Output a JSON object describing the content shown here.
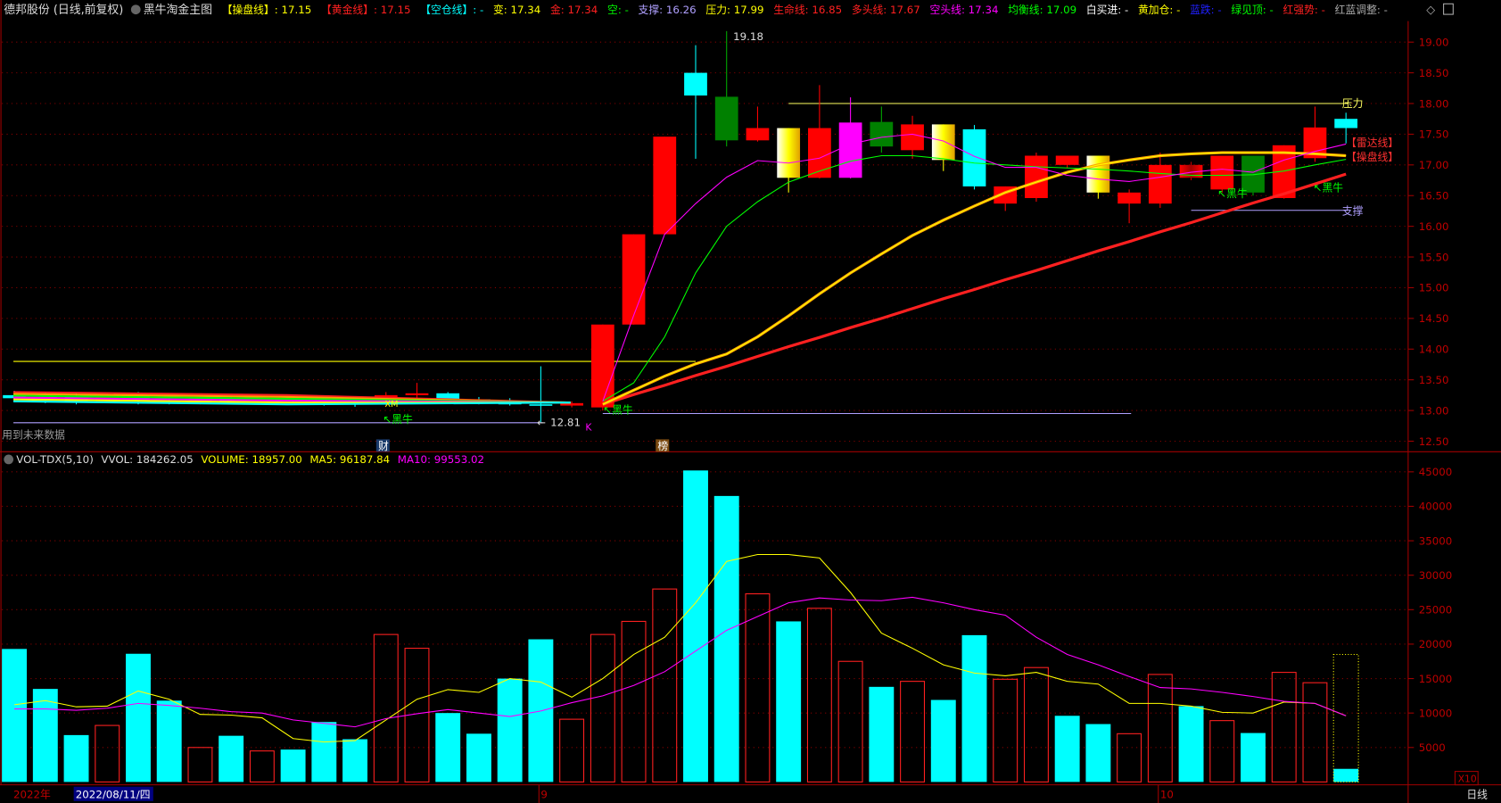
{
  "header": {
    "title": "德邦股份 (日线,前复权)",
    "indicator_name": "黑牛淘金主图",
    "items": [
      {
        "text": "【操盘线】: 17.15",
        "color": "#ffff00"
      },
      {
        "text": "【黄金线】: 17.15",
        "color": "#ff2020"
      },
      {
        "text": "【空仓线】: -",
        "color": "#00ffff"
      },
      {
        "text": "变: 17.34",
        "color": "#ffff00"
      },
      {
        "text": "金: 17.34",
        "color": "#ff2020"
      },
      {
        "text": "空: -",
        "color": "#00ff00"
      },
      {
        "text": "支撑: 16.26",
        "color": "#b0a0ff"
      },
      {
        "text": "压力: 17.99",
        "color": "#ffff00"
      },
      {
        "text": "生命线: 16.85",
        "color": "#ff2020"
      },
      {
        "text": "多头线: 17.67",
        "color": "#ff2020"
      },
      {
        "text": "空头线: 17.34",
        "color": "#ff00ff"
      },
      {
        "text": "均衡线: 17.09",
        "color": "#00ff00"
      },
      {
        "text": "白买进: -",
        "color": "#ffffff"
      },
      {
        "text": "黄加仓: -",
        "color": "#ffff00"
      },
      {
        "text": "蓝跌: -",
        "color": "#2020ff"
      },
      {
        "text": "绿见顶: -",
        "color": "#00ff00"
      },
      {
        "text": "红强势: -",
        "color": "#ff2020"
      },
      {
        "text": "红蓝调整: -",
        "color": "#aaaaaa"
      }
    ]
  },
  "volume_header": {
    "name": "VOL-TDX(5,10)",
    "vvol": "VVOL: 184262.05",
    "volume": "VOLUME: 18957.00",
    "ma5": "MA5: 96187.84",
    "ma10": "MA10: 99553.02"
  },
  "labels": {
    "future_data": "用到未来数据",
    "cai": "财",
    "bang": "榜",
    "high": "19.18",
    "low": "12.81",
    "pressure": "压力",
    "support": "支撑",
    "radar": "【雷达线】",
    "caopan": "【操盘线】",
    "heiniu": "↖黑牛",
    "xm": "XM",
    "k": "K",
    "x10": "X10",
    "period": "日线",
    "year": "2022年",
    "date": "2022/08/11/四",
    "month9": "9",
    "month10": "10"
  },
  "colors": {
    "up": "#ff2020",
    "down": "#00ffff",
    "axis": "#a00000",
    "grid": "#8b0000"
  },
  "chart_data": [
    {
      "type": "candlestick",
      "yticks": [
        "19.00",
        "18.50",
        "18.00",
        "17.50",
        "17.00",
        "16.50",
        "16.00",
        "15.50",
        "15.00",
        "14.50",
        "14.00",
        "13.50",
        "13.00",
        "12.50"
      ],
      "ylim": [
        12.4,
        19.4
      ],
      "candles": [
        {
          "o": 13.25,
          "h": 13.32,
          "l": 13.15,
          "c": 13.2,
          "color": "cyan"
        },
        {
          "o": 13.2,
          "h": 13.3,
          "l": 13.12,
          "c": 13.22,
          "color": "cyan"
        },
        {
          "o": 13.22,
          "h": 13.28,
          "l": 13.1,
          "c": 13.15,
          "color": "cyan"
        },
        {
          "o": 13.15,
          "h": 13.28,
          "l": 13.12,
          "c": 13.25,
          "color": "red"
        },
        {
          "o": 13.25,
          "h": 13.3,
          "l": 13.1,
          "c": 13.15,
          "color": "cyan"
        },
        {
          "o": 13.15,
          "h": 13.22,
          "l": 13.1,
          "c": 13.12,
          "color": "cyan"
        },
        {
          "o": 13.12,
          "h": 13.22,
          "l": 13.1,
          "c": 13.2,
          "color": "red"
        },
        {
          "o": 13.2,
          "h": 13.24,
          "l": 13.1,
          "c": 13.14,
          "color": "cyan"
        },
        {
          "o": 13.14,
          "h": 13.22,
          "l": 13.1,
          "c": 13.2,
          "color": "red"
        },
        {
          "o": 13.2,
          "h": 13.24,
          "l": 13.12,
          "c": 13.16,
          "color": "cyan"
        },
        {
          "o": 13.16,
          "h": 13.2,
          "l": 13.08,
          "c": 13.12,
          "color": "cyan"
        },
        {
          "o": 13.12,
          "h": 13.18,
          "l": 13.06,
          "c": 13.1,
          "color": "cyan"
        },
        {
          "o": 13.1,
          "h": 13.3,
          "l": 13.08,
          "c": 13.25,
          "color": "red"
        },
        {
          "o": 13.25,
          "h": 13.45,
          "l": 13.2,
          "c": 13.28,
          "color": "red"
        },
        {
          "o": 13.28,
          "h": 13.3,
          "l": 13.15,
          "c": 13.18,
          "color": "cyan"
        },
        {
          "o": 13.18,
          "h": 13.22,
          "l": 13.1,
          "c": 13.14,
          "color": "cyan"
        },
        {
          "o": 13.14,
          "h": 13.2,
          "l": 13.08,
          "c": 13.1,
          "color": "cyan"
        },
        {
          "o": 13.1,
          "h": 13.72,
          "l": 12.81,
          "c": 13.08,
          "color": "cyan"
        },
        {
          "o": 13.08,
          "h": 13.15,
          "l": 13.05,
          "c": 13.12,
          "color": "red"
        },
        {
          "o": 13.05,
          "h": 14.4,
          "l": 13.0,
          "c": 14.4,
          "color": "red"
        },
        {
          "o": 14.4,
          "h": 15.87,
          "l": 14.4,
          "c": 15.87,
          "color": "red"
        },
        {
          "o": 15.87,
          "h": 17.46,
          "l": 15.87,
          "c": 17.46,
          "color": "red"
        },
        {
          "o": 18.5,
          "h": 18.95,
          "l": 17.1,
          "c": 18.13,
          "color": "cyan"
        },
        {
          "o": 18.11,
          "h": 19.18,
          "l": 17.3,
          "c": 17.4,
          "color": "green"
        },
        {
          "o": 17.4,
          "h": 17.95,
          "l": 17.38,
          "c": 17.6,
          "color": "red"
        },
        {
          "o": 17.6,
          "h": 17.6,
          "l": 16.55,
          "c": 16.79,
          "color": "yellow"
        },
        {
          "o": 16.79,
          "h": 18.3,
          "l": 16.78,
          "c": 17.6,
          "color": "red"
        },
        {
          "o": 17.69,
          "h": 18.1,
          "l": 16.78,
          "c": 16.79,
          "color": "magenta"
        },
        {
          "o": 17.7,
          "h": 17.95,
          "l": 17.2,
          "c": 17.3,
          "color": "green"
        },
        {
          "o": 17.24,
          "h": 17.8,
          "l": 17.1,
          "c": 17.66,
          "color": "red"
        },
        {
          "o": 17.66,
          "h": 17.66,
          "l": 16.9,
          "c": 17.08,
          "color": "yellow"
        },
        {
          "o": 17.58,
          "h": 17.65,
          "l": 16.6,
          "c": 16.65,
          "color": "cyan"
        },
        {
          "o": 16.37,
          "h": 16.65,
          "l": 16.25,
          "c": 16.65,
          "color": "red"
        },
        {
          "o": 16.46,
          "h": 17.2,
          "l": 16.4,
          "c": 17.15,
          "color": "red"
        },
        {
          "o": 17.0,
          "h": 17.15,
          "l": 16.95,
          "c": 17.15,
          "color": "red"
        },
        {
          "o": 17.15,
          "h": 17.15,
          "l": 16.45,
          "c": 16.55,
          "color": "yellow"
        },
        {
          "o": 16.37,
          "h": 16.6,
          "l": 16.05,
          "c": 16.55,
          "color": "red"
        },
        {
          "o": 16.37,
          "h": 17.2,
          "l": 16.3,
          "c": 17.0,
          "color": "red"
        },
        {
          "o": 17.0,
          "h": 17.05,
          "l": 16.75,
          "c": 16.79,
          "color": "darkred"
        },
        {
          "o": 16.6,
          "h": 17.15,
          "l": 16.55,
          "c": 17.15,
          "color": "red"
        },
        {
          "o": 17.15,
          "h": 17.15,
          "l": 16.5,
          "c": 16.55,
          "color": "green"
        },
        {
          "o": 16.46,
          "h": 17.32,
          "l": 16.45,
          "c": 17.32,
          "color": "red"
        },
        {
          "o": 17.11,
          "h": 17.95,
          "l": 17.05,
          "c": 17.61,
          "color": "red"
        },
        {
          "o": 17.75,
          "h": 17.85,
          "l": 17.35,
          "c": 17.6,
          "color": "cyan"
        }
      ],
      "lines": [
        {
          "name": "生命线",
          "color": "#ff2020",
          "start": 19,
          "values": [
            13.1,
            13.26,
            13.41,
            13.57,
            13.72,
            13.88,
            14.04,
            14.19,
            14.35,
            14.5,
            14.66,
            14.82,
            14.97,
            15.13,
            15.28,
            15.44,
            15.6,
            15.75,
            15.91,
            16.06,
            16.22,
            16.38,
            16.53,
            16.69,
            16.85
          ]
        },
        {
          "name": "操盘线",
          "color": "#ffa000",
          "start": 19,
          "values": [
            13.1,
            13.33,
            13.56,
            13.76,
            13.92,
            14.2,
            14.54,
            14.9,
            15.24,
            15.55,
            15.85,
            16.1,
            16.33,
            16.55,
            16.72,
            16.88,
            17.0,
            17.08,
            17.15,
            17.18,
            17.2,
            17.2,
            17.2,
            17.18,
            17.15
          ]
        },
        {
          "name": "均衡线",
          "color": "#00ff00",
          "start": 19,
          "values": [
            13.15,
            13.45,
            14.2,
            15.24,
            16.0,
            16.4,
            16.72,
            16.9,
            17.06,
            17.15,
            17.15,
            17.1,
            17.03,
            17.0,
            16.97,
            16.95,
            16.93,
            16.9,
            16.86,
            16.83,
            16.83,
            16.84,
            16.9,
            17.0,
            17.09
          ]
        },
        {
          "name": "空头线",
          "color": "#ff00ff",
          "start": 19,
          "values": [
            13.15,
            14.55,
            15.87,
            16.37,
            16.8,
            17.07,
            17.03,
            17.11,
            17.34,
            17.45,
            17.5,
            17.39,
            17.14,
            16.96,
            16.96,
            16.83,
            16.77,
            16.73,
            16.8,
            16.88,
            16.93,
            16.88,
            17.08,
            17.22,
            17.34
          ]
        }
      ],
      "hlines": [
        {
          "label": "压力",
          "value": 18.0,
          "from": 25,
          "to": 43,
          "color": "#ffff60"
        },
        {
          "label": "支撑",
          "value": 16.26,
          "from": 38,
          "to": 43,
          "color": "#b0a0ff"
        },
        {
          "value": 13.8,
          "from": 0,
          "to": 22,
          "color": "#ffff00"
        },
        {
          "value": 12.8,
          "from": 0,
          "to": 17,
          "color": "#b0a0ff"
        },
        {
          "value": 12.95,
          "from": 19,
          "to": 36,
          "color": "#b0a0ff"
        }
      ]
    },
    {
      "type": "bar",
      "title": "VOL-TDX(5,10)",
      "ylim": [
        0,
        50000
      ],
      "yticks": [
        "45000",
        "40000",
        "35000",
        "30000",
        "25000",
        "20000",
        "15000",
        "10000",
        "5000"
      ],
      "values": [
        19300,
        13500,
        6800,
        8200,
        18600,
        11800,
        5000,
        6700,
        4500,
        4700,
        8700,
        6200,
        21400,
        19400,
        10000,
        7000,
        15000,
        20700,
        9100,
        21400,
        23300,
        28000,
        45200,
        41500,
        27300,
        23300,
        25200,
        17500,
        13800,
        14600,
        11900,
        21300,
        14900,
        16600,
        9600,
        8400,
        7000,
        15600,
        11000,
        8900,
        7100,
        15900,
        14400,
        1900
      ],
      "up": [
        false,
        false,
        false,
        true,
        false,
        false,
        true,
        false,
        true,
        false,
        false,
        false,
        true,
        true,
        false,
        false,
        false,
        false,
        true,
        true,
        true,
        true,
        false,
        false,
        true,
        false,
        true,
        true,
        false,
        true,
        false,
        false,
        true,
        true,
        false,
        false,
        true,
        true,
        false,
        true,
        false,
        true,
        true,
        false
      ],
      "last_estimated": 18500,
      "series": [
        {
          "name": "MA5",
          "color": "#ffff00",
          "values": [
            11200,
            11800,
            10900,
            11000,
            13200,
            12000,
            9800,
            9700,
            9300,
            6300,
            5800,
            6000,
            9000,
            12000,
            13400,
            13000,
            15000,
            14500,
            12300,
            15000,
            18500,
            21000,
            26000,
            32000,
            33000,
            33000,
            32500,
            27500,
            21600,
            19400,
            17000,
            15800,
            15400,
            15900,
            14600,
            14200,
            11400,
            11400,
            11000,
            10100,
            10000,
            11600,
            11400,
            9600
          ]
        },
        {
          "name": "MA10",
          "color": "#ff00ff",
          "values": [
            10600,
            10600,
            10400,
            10700,
            11400,
            11100,
            10700,
            10200,
            10000,
            9000,
            8500,
            8000,
            9200,
            9900,
            10500,
            10000,
            9500,
            10300,
            11500,
            12500,
            14000,
            16000,
            19000,
            22000,
            24000,
            26000,
            26700,
            26400,
            26300,
            26800,
            26000,
            25000,
            24200,
            21000,
            18500,
            17000,
            15300,
            13700,
            13500,
            13000,
            12400,
            11700,
            11400,
            9600
          ]
        }
      ]
    }
  ]
}
